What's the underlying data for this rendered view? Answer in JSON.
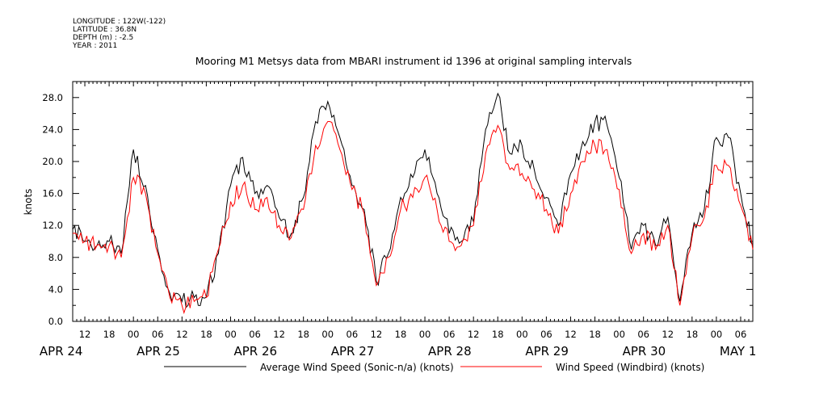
{
  "header": {
    "longitude": "LONGITUDE : 122W(-122)",
    "latitude": "LATITUDE : 36.8N",
    "depth": "DEPTH (m) : -2.5",
    "year": "YEAR : 2011"
  },
  "chart_data": {
    "type": "line",
    "title": "Mooring M1 Metsys data from MBARI instrument id 1396 at original sampling intervals",
    "ylabel": "knots",
    "xlabel": "",
    "ylim": [
      0,
      30
    ],
    "yticks": [
      "0.0",
      "4.0",
      "8.0",
      "12.0",
      "16.0",
      "20.0",
      "24.0",
      "28.0"
    ],
    "x_units": "hours since APR 24 00:00 (2011)",
    "xlim": [
      9,
      177
    ],
    "hour_tick_labels": [
      "12",
      "18",
      "00",
      "06",
      "12",
      "18",
      "00",
      "06",
      "12",
      "18",
      "00",
      "06",
      "12",
      "18",
      "00",
      "06",
      "12",
      "18",
      "00",
      "06",
      "12",
      "18",
      "00",
      "06",
      "12",
      "18",
      "00",
      "06",
      "12",
      "18",
      "00",
      "06",
      "12",
      "18",
      "00",
      "06"
    ],
    "day_labels": [
      "APR 24",
      "APR 25",
      "APR 26",
      "APR 27",
      "APR 28",
      "APR 29",
      "APR 30",
      "MAY  1"
    ],
    "grid": false,
    "legend_position": "bottom",
    "series": [
      {
        "name": "Average Wind Speed (Sonic-n/a) (knots)",
        "color": "#000000",
        "x": [
          9,
          12,
          15,
          18,
          21,
          24,
          27,
          30,
          33,
          36,
          39,
          42,
          45,
          48,
          51,
          54,
          57,
          60,
          63,
          66,
          69,
          72,
          75,
          78,
          81,
          84,
          87,
          90,
          93,
          96,
          99,
          102,
          105,
          108,
          111,
          114,
          117,
          120,
          123,
          126,
          129,
          132,
          135,
          138,
          141,
          144,
          147,
          150,
          153,
          156,
          159,
          162,
          165,
          168,
          171,
          174,
          177
        ],
        "values": [
          11.5,
          10,
          9.5,
          10,
          8.5,
          21.5,
          17,
          9,
          3.5,
          2.5,
          3,
          3,
          8.5,
          17,
          20.5,
          16,
          17,
          13,
          11,
          15.5,
          25,
          27.5,
          23,
          17,
          14,
          5,
          8.5,
          15.5,
          18,
          21.5,
          16,
          11,
          10,
          12.5,
          24,
          28.5,
          21,
          22,
          19,
          15.5,
          12,
          18.5,
          22.5,
          25,
          24.5,
          18,
          9,
          12,
          9.5,
          13,
          2.5,
          11,
          14,
          23,
          23,
          16,
          9.5
        ]
      },
      {
        "name": "Wind Speed (Windbird) (knots)",
        "color": "#ff0000",
        "x": [
          9,
          12,
          15,
          18,
          21,
          24,
          27,
          30,
          33,
          36,
          39,
          42,
          45,
          48,
          51,
          54,
          57,
          60,
          63,
          66,
          69,
          72,
          75,
          78,
          81,
          84,
          87,
          90,
          93,
          96,
          99,
          102,
          105,
          108,
          111,
          114,
          117,
          120,
          123,
          126,
          129,
          132,
          135,
          138,
          141,
          144,
          147,
          150,
          153,
          156,
          159,
          162,
          165,
          168,
          171,
          174,
          177
        ],
        "values": [
          11,
          10,
          9.5,
          9.5,
          8,
          18,
          16,
          8.5,
          3,
          2,
          2.5,
          3,
          9,
          15,
          17,
          14,
          15.5,
          12,
          10.5,
          14,
          22,
          25,
          21.5,
          16.5,
          13.5,
          4.5,
          8,
          14,
          15.5,
          18,
          14,
          10,
          9.5,
          12,
          21,
          24.5,
          19,
          18.5,
          16.5,
          14,
          11,
          16,
          20,
          22,
          21.5,
          16.5,
          8.5,
          11,
          9,
          12,
          2,
          10.5,
          13,
          19.5,
          19.5,
          14.5,
          9
        ]
      }
    ]
  }
}
